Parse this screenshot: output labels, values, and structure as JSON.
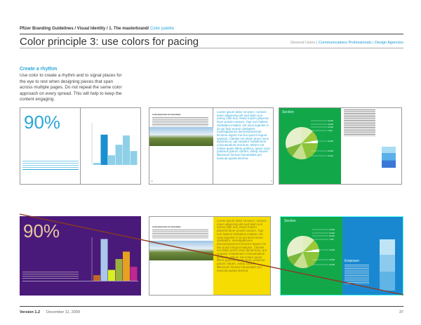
{
  "breadcrumb": {
    "path": "Pfizer Branding Guidelines / Visual Identity / 1. The masterbrand/ ",
    "current": "Color palette"
  },
  "page_title": "Color principle 3: use colors for pacing",
  "audiences": {
    "general": "General Users",
    "sep1": " | ",
    "comm": "Communications Professionals",
    "sep2": " | ",
    "design": "Design Agencies"
  },
  "rhythm": {
    "heading": "Create a rhythm",
    "body": "Use color to create a rhythm and to signal places for the eye to rest when designing pieces that span across multiple pages. Do not repeat the same color approach on every spread. This will help to keep the content engaging."
  },
  "examples": {
    "stat": "90%",
    "lorem": "Lorem ipsum dolor sit amet, consect etuer adipiscing elit sed diam non ummy nibh eus. Raed mazim placerat facer possim assum. Typi non habent claritatem insitam; est usus legentis in iis qui facit eorum claritatem. Investigationes demonstraverunt lectores legere me lius quod ii legunt saepius. Claritas est etiam proce ssus dynamicus, qui sequitur mutationem consuetudium lectorum. Mirum est notare quam littera gothica, quam nunc putamus parum claram, antep osuerit litterarum formas humanitatis per seacula quarta decima",
    "section": "Section",
    "empower": "Empower",
    "pie_labels": [
      "10,000",
      "10,000",
      "10,000",
      "7,000",
      "10,000",
      "10,000",
      "10,000"
    ],
    "small_heading": "Lorem ipsum dolor sit consectetuer",
    "page_l": "4",
    "page_r": "5"
  },
  "chart_top": {
    "type": "bar",
    "values": [
      5,
      72,
      23,
      48,
      70,
      33
    ],
    "colors": [
      "#8fd0e8",
      "#1a8fd0",
      "#8fd0e8",
      "#8fd0e8",
      "#8fd0e8",
      "#8fd0e8"
    ]
  },
  "chart_bottom": {
    "type": "bar",
    "values": [
      13,
      96,
      25,
      50,
      67,
      32
    ],
    "colors": [
      "#c0682a",
      "#a8c8ea",
      "#d8f020",
      "#9ab040",
      "#e8a020",
      "#c02890"
    ]
  },
  "footer": {
    "version": "Version 1.2",
    "date": "December 11, 2009",
    "page": "37"
  }
}
